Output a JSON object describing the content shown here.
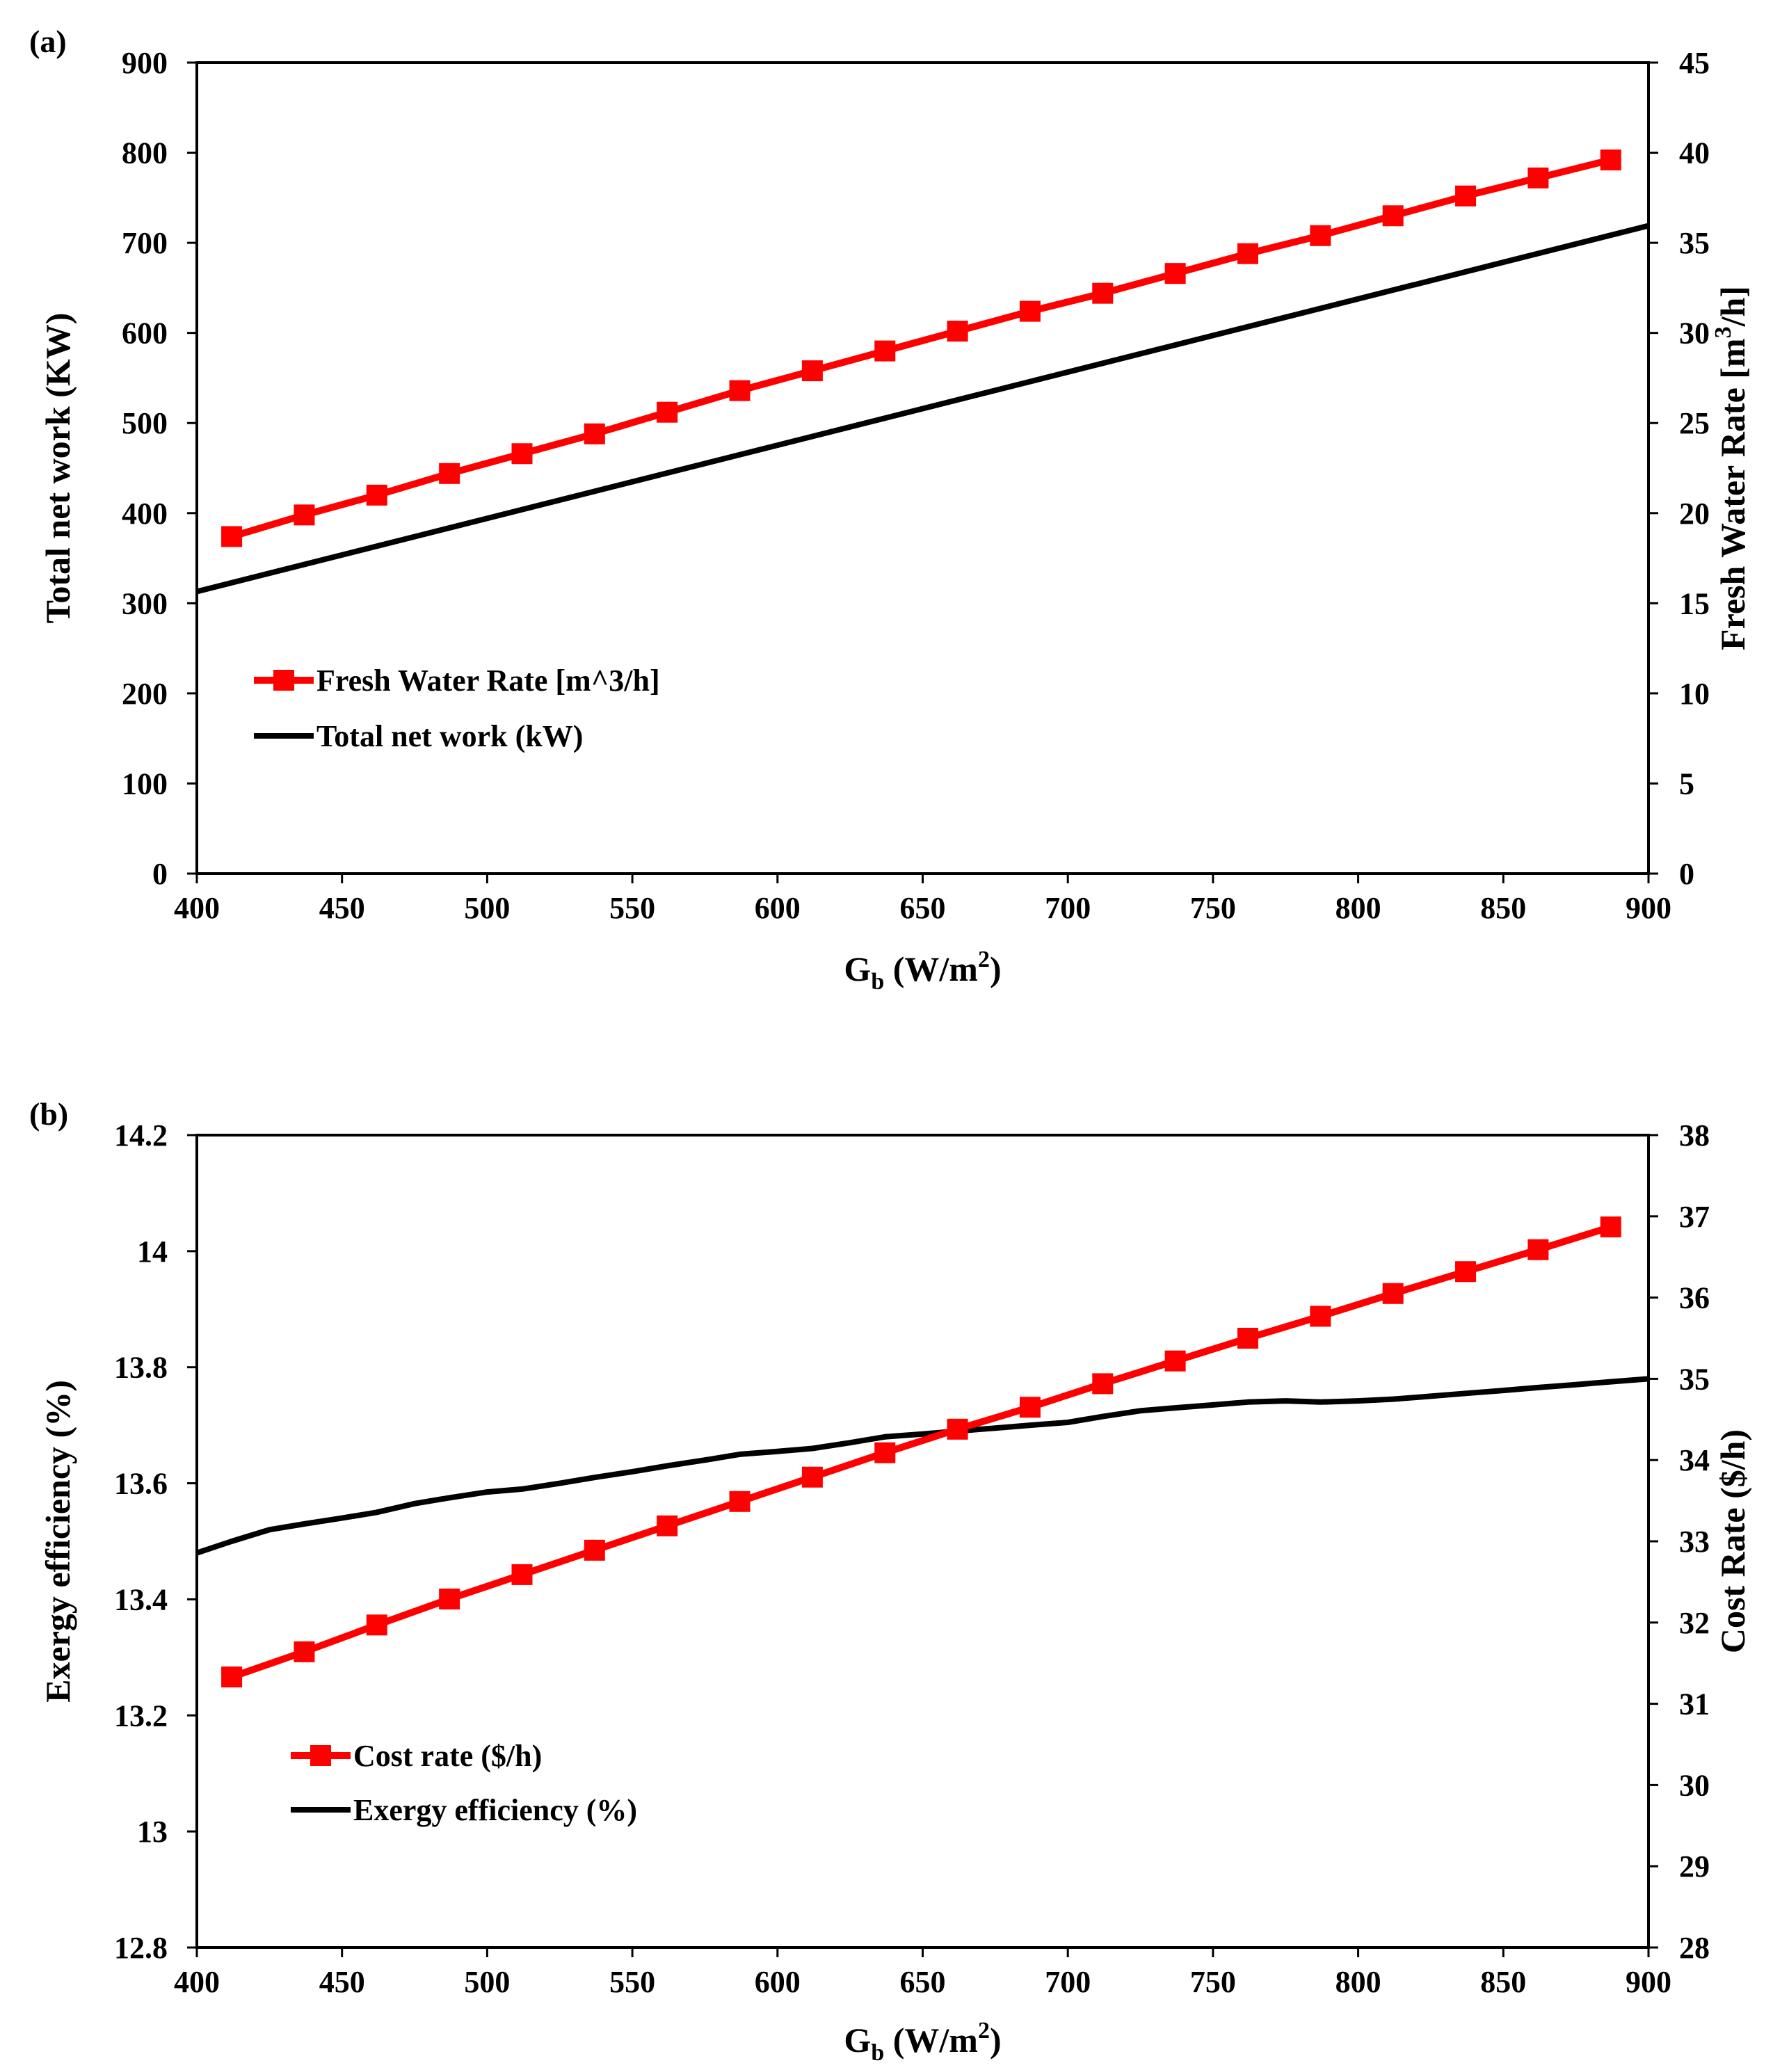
{
  "chart_data": [
    {
      "type": "line",
      "panel_label": "(a)",
      "title": "",
      "xlabel": {
        "main": "G",
        "sub": "b",
        "rest": " (W/m",
        "sup": "2",
        "end": ")"
      },
      "ylabel_left": "Total net work (KW)",
      "ylabel_right": {
        "main": "Fresh Water Rate  [m",
        "sup": "3",
        "end": "/h]"
      },
      "xlim": [
        400,
        900
      ],
      "xticks": [
        400,
        450,
        500,
        550,
        600,
        650,
        700,
        750,
        800,
        850,
        900
      ],
      "ylim_left": [
        0,
        900
      ],
      "yticks_left": [
        0,
        100,
        200,
        300,
        400,
        500,
        600,
        700,
        800,
        900
      ],
      "ylim_right": [
        0,
        45
      ],
      "yticks_right": [
        0,
        5,
        10,
        15,
        20,
        25,
        30,
        35,
        40,
        45
      ],
      "grid": false,
      "legend_position": "center-left",
      "series": [
        {
          "name": "Fresh Water Rate  [m^3/h]",
          "axis": "right",
          "color": "#ff0000",
          "marker": "square",
          "x": [
            412,
            437,
            462,
            487,
            512,
            537,
            562,
            587,
            612,
            637,
            662,
            687,
            712,
            737,
            762,
            787,
            812,
            837,
            862,
            887
          ],
          "values": [
            18.7,
            19.9,
            21.0,
            22.2,
            23.3,
            24.4,
            25.6,
            26.8,
            27.9,
            29.0,
            30.1,
            31.2,
            32.2,
            33.3,
            34.4,
            35.4,
            36.5,
            37.6,
            38.6,
            39.6
          ]
        },
        {
          "name": "Total net work (kW)",
          "axis": "left",
          "color": "#000000",
          "marker": "none",
          "x": [
            400,
            900
          ],
          "values": [
            313,
            719
          ]
        }
      ]
    },
    {
      "type": "line",
      "panel_label": "(b)",
      "title": "",
      "xlabel": {
        "main": "G",
        "sub": "b",
        "rest": " (W/m",
        "sup": "2",
        "end": ")"
      },
      "ylabel_left": "Exergy efficiency (%)",
      "ylabel_right": "Cost Rate ($/h)",
      "xlim": [
        400,
        900
      ],
      "xticks": [
        400,
        450,
        500,
        550,
        600,
        650,
        700,
        750,
        800,
        850,
        900
      ],
      "ylim_left": [
        12.8,
        14.2
      ],
      "yticks_left": [
        "12.8",
        "13",
        "13.2",
        "13.4",
        "13.6",
        "13.8",
        "14",
        "14.2"
      ],
      "ylim_right": [
        28,
        38
      ],
      "yticks_right": [
        28,
        29,
        30,
        31,
        32,
        33,
        34,
        35,
        36,
        37,
        38
      ],
      "grid": false,
      "legend_position": "bottom-left",
      "series": [
        {
          "name": "Cost rate ($/h)",
          "axis": "right",
          "color": "#ff0000",
          "marker": "square",
          "x": [
            412,
            437,
            462,
            487,
            512,
            537,
            562,
            587,
            612,
            637,
            662,
            687,
            712,
            737,
            762,
            787,
            812,
            837,
            862,
            887
          ],
          "values": [
            31.33,
            31.64,
            31.97,
            32.29,
            32.59,
            32.89,
            33.19,
            33.49,
            33.79,
            34.09,
            34.38,
            34.65,
            34.94,
            35.22,
            35.5,
            35.77,
            36.05,
            36.32,
            36.59,
            36.87
          ]
        },
        {
          "name": "Exergy efficiency (%)",
          "axis": "left",
          "color": "#000000",
          "marker": "none",
          "x": [
            400,
            412,
            425,
            437,
            450,
            462,
            475,
            487,
            500,
            512,
            525,
            537,
            550,
            562,
            575,
            587,
            600,
            612,
            625,
            637,
            650,
            662,
            675,
            687,
            700,
            712,
            725,
            737,
            750,
            762,
            775,
            787,
            800,
            812,
            825,
            837,
            850,
            862,
            875,
            887,
            900
          ],
          "values": [
            13.48,
            13.5,
            13.52,
            13.53,
            13.54,
            13.55,
            13.565,
            13.575,
            13.585,
            13.59,
            13.6,
            13.61,
            13.62,
            13.63,
            13.64,
            13.65,
            13.655,
            13.66,
            13.67,
            13.68,
            13.685,
            13.69,
            13.695,
            13.7,
            13.705,
            13.715,
            13.725,
            13.73,
            13.735,
            13.74,
            13.742,
            13.74,
            13.742,
            13.745,
            13.75,
            13.755,
            13.76,
            13.765,
            13.77,
            13.775,
            13.78
          ]
        }
      ]
    }
  ]
}
